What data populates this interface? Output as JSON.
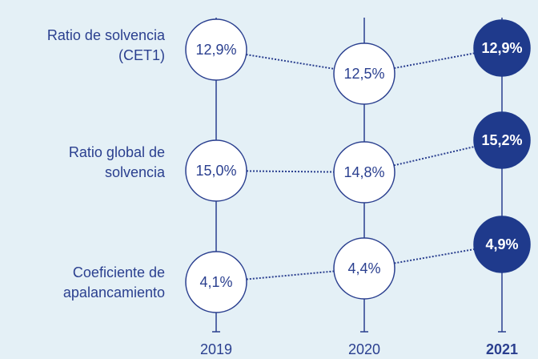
{
  "chart_data": {
    "type": "dot",
    "categories": [
      "2019",
      "2020",
      "2021"
    ],
    "series": [
      {
        "name": "Ratio de solvencia\n(CET1)",
        "values": [
          12.9,
          12.5,
          12.9
        ],
        "value_labels": [
          "12,9%",
          "12,5%",
          "12,9%"
        ]
      },
      {
        "name": "Ratio global de\nsolvencia",
        "values": [
          15.0,
          14.8,
          15.2
        ],
        "value_labels": [
          "15,0%",
          "14,8%",
          "15,2%"
        ]
      },
      {
        "name": "Coeficiente de\napalancamiento",
        "values": [
          4.1,
          4.4,
          4.9
        ],
        "value_labels": [
          "4,1%",
          "4,4%",
          "4,9%"
        ]
      }
    ],
    "color": "#1f3a8c"
  }
}
